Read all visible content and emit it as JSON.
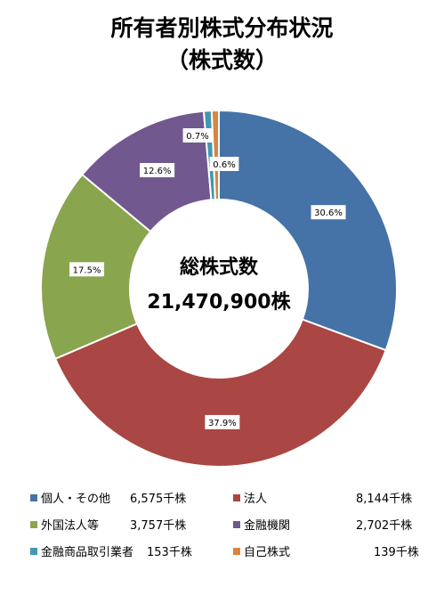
{
  "chart_data": {
    "type": "pie",
    "title": "所有者別株式分布状況",
    "subtitle": "（株式数）",
    "center_label": "総株式数",
    "center_value": "21,470,900株",
    "categories": [
      "個人・その他",
      "法人",
      "外国法人等",
      "金融機関",
      "金融商品取引業者",
      "自己株式"
    ],
    "values": [
      6575,
      8144,
      3757,
      2702,
      153,
      139
    ],
    "unit": "千株",
    "percent_labels": [
      "30.6%",
      "37.9%",
      "17.5%",
      "12.6%",
      "0.7%",
      "0.6%"
    ],
    "legend_values": [
      "6,575千株",
      "8,144千株",
      "3,757千株",
      "2,702千株",
      "153千株",
      "139千株"
    ],
    "colors": [
      "#4572A7",
      "#AA4643",
      "#89A54E",
      "#71588F",
      "#4198AF",
      "#DB843D"
    ],
    "legend_position": "bottom"
  }
}
